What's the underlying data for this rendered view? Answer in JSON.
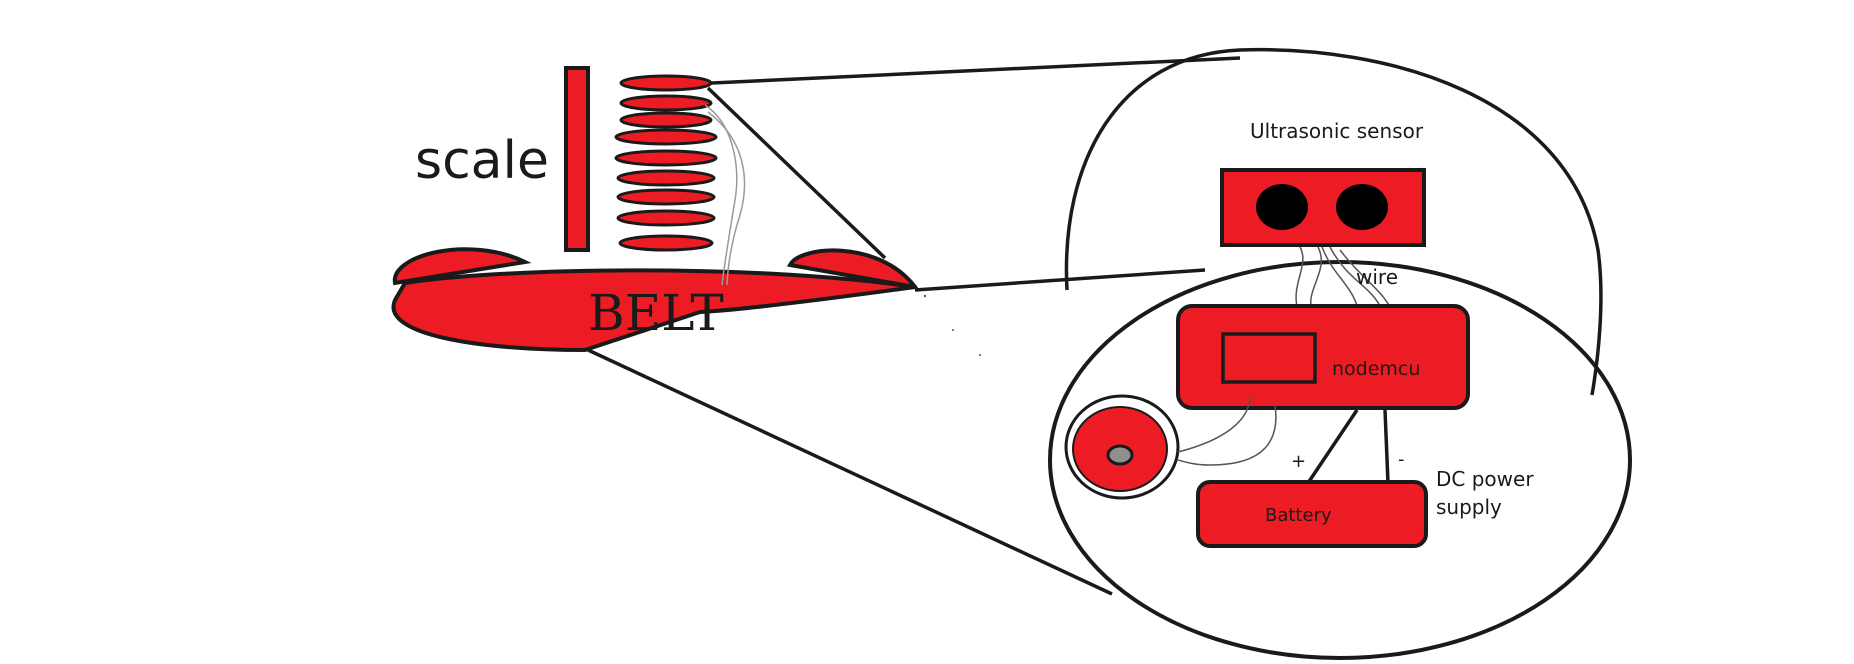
{
  "diagram": {
    "labels": {
      "scale": "scale",
      "belt": "BELT",
      "ultrasonic_sensor": "Ultrasonic sensor",
      "wire": "wire",
      "nodemcu": "nodemcu",
      "battery": "Battery",
      "dc_power_supply_line1": "DC power",
      "dc_power_supply_line2": "supply",
      "plus": "+",
      "minus": "-"
    },
    "colors": {
      "red": "#ed1c24",
      "outline": "#1a1a1a",
      "background": "#ffffff",
      "gray": "#8f8f8f"
    }
  }
}
